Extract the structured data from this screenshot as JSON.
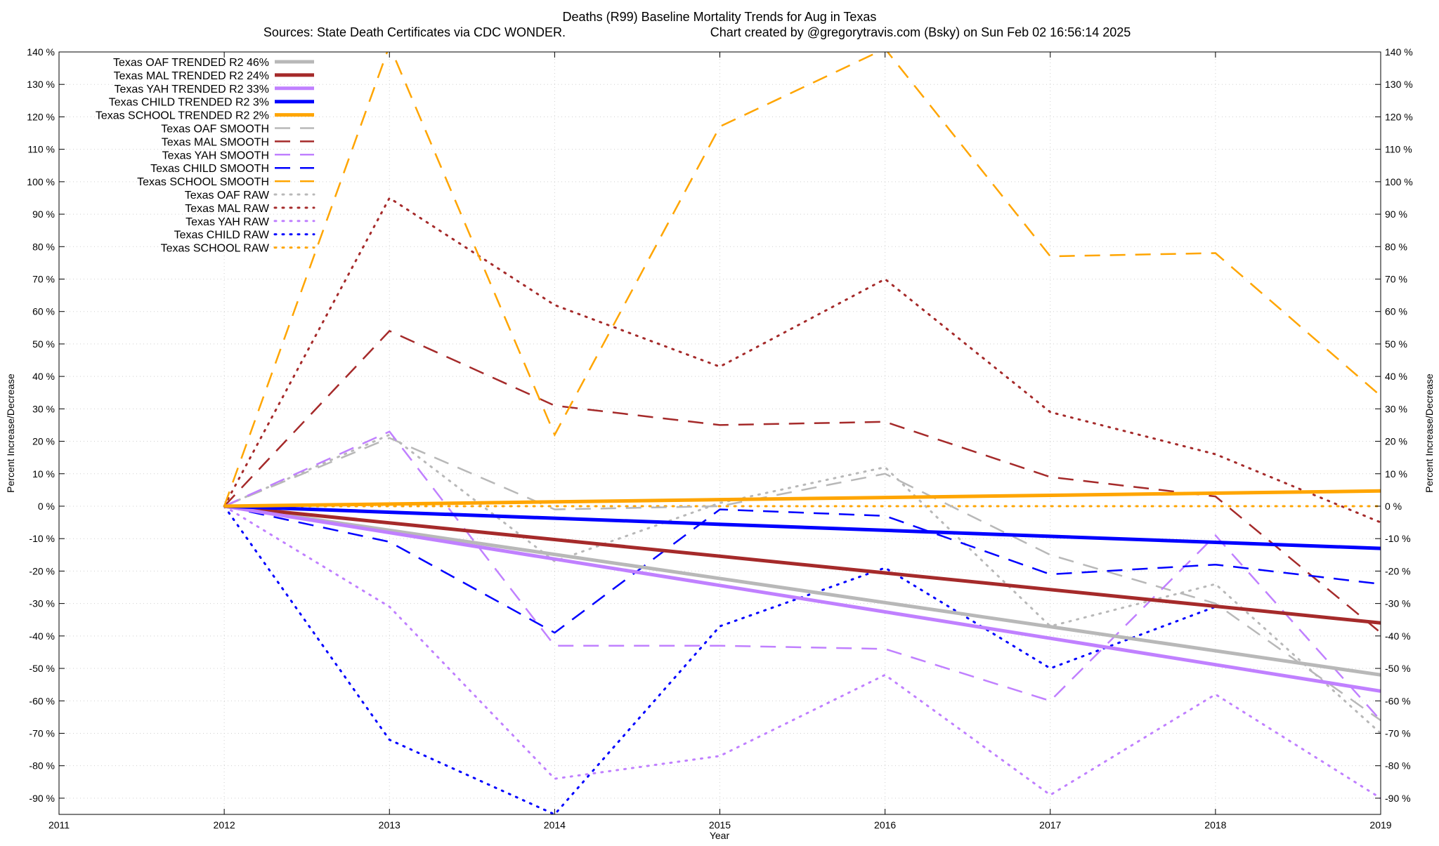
{
  "chart_data": {
    "type": "line",
    "title": "Deaths (R99)  Baseline Mortality Trends for Aug in Texas",
    "subtitle_left": "Sources: State Death Certificates via CDC WONDER.",
    "subtitle_right": "Chart created by @gregorytravis.com (Bsky) on Sun Feb 02 16:56:14 2025",
    "xlabel": "Year",
    "ylabel": "Percent Increase/Decrease",
    "y2label": "Percent Increase/Decrease",
    "xlim": [
      2011,
      2019
    ],
    "ylim": [
      -95,
      140
    ],
    "x_ticks": [
      "2011",
      "2012",
      "2013",
      "2014",
      "2015",
      "2016",
      "2017",
      "2018",
      "2019"
    ],
    "y_ticks": [
      140,
      130,
      120,
      110,
      100,
      90,
      80,
      70,
      60,
      50,
      40,
      30,
      20,
      10,
      0,
      -10,
      -20,
      -30,
      -40,
      -50,
      -60,
      -70,
      -80,
      -90
    ],
    "y_tick_labels": [
      "140 %",
      "130 %",
      "120 %",
      "110 %",
      "100 %",
      "90 %",
      "80 %",
      "70 %",
      "60 %",
      "50 %",
      "40 %",
      "30 %",
      "20 %",
      "10 %",
      "0 %",
      "-10 %",
      "-20 %",
      "-30 %",
      "-40 %",
      "-50 %",
      "-60 %",
      "-70 %",
      "-80 %",
      "-90 %"
    ],
    "grid": true,
    "legend_position": "top-left",
    "series": [
      {
        "name": "Texas OAF TRENDED R2  46%",
        "style": "solid",
        "color": "#b8b8b8",
        "x": [
          2012,
          2019
        ],
        "y": [
          0,
          -52
        ]
      },
      {
        "name": "Texas MAL TRENDED R2  24%",
        "style": "solid",
        "color": "#a52a2a",
        "x": [
          2012,
          2019
        ],
        "y": [
          0,
          -36
        ]
      },
      {
        "name": "Texas YAH TRENDED R2  33%",
        "style": "solid",
        "color": "#c080ff",
        "x": [
          2012,
          2019
        ],
        "y": [
          0,
          -57
        ]
      },
      {
        "name": "Texas CHILD TRENDED R2  3%",
        "style": "solid",
        "color": "#0000ff",
        "x": [
          2012,
          2019
        ],
        "y": [
          0,
          -13
        ]
      },
      {
        "name": "Texas SCHOOL TRENDED R2  2%",
        "style": "solid",
        "color": "#ffa500",
        "x": [
          2012,
          2019
        ],
        "y": [
          0,
          4.7
        ]
      },
      {
        "name": "Texas OAF SMOOTH",
        "style": "dash",
        "color": "#b8b8b8",
        "x": [
          2012,
          2013,
          2014,
          2015,
          2016,
          2017,
          2018,
          2019
        ],
        "y": [
          0,
          21,
          -1,
          0,
          10,
          -15,
          -30,
          -66
        ]
      },
      {
        "name": "Texas MAL SMOOTH",
        "style": "dash",
        "color": "#a52a2a",
        "x": [
          2012,
          2013,
          2014,
          2015,
          2016,
          2017,
          2018,
          2019
        ],
        "y": [
          0,
          54,
          31,
          25,
          26,
          9,
          3,
          -39
        ]
      },
      {
        "name": "Texas YAH SMOOTH",
        "style": "dash",
        "color": "#c080ff",
        "x": [
          2012,
          2013,
          2014,
          2015,
          2016,
          2017,
          2018,
          2019
        ],
        "y": [
          0,
          23,
          -43,
          -43,
          -44,
          -60,
          -9,
          -66
        ]
      },
      {
        "name": "Texas CHILD SMOOTH",
        "style": "dash",
        "color": "#0000ff",
        "x": [
          2012,
          2013,
          2014,
          2015,
          2016,
          2017,
          2018,
          2019
        ],
        "y": [
          0,
          -11,
          -39,
          -1,
          -3,
          -21,
          -18,
          -24
        ]
      },
      {
        "name": "Texas SCHOOL SMOOTH",
        "style": "dash",
        "color": "#ffa500",
        "x": [
          2012,
          2013,
          2014,
          2015,
          2016,
          2017,
          2018,
          2019
        ],
        "y": [
          0,
          142,
          22,
          117,
          141,
          77,
          78,
          34
        ]
      },
      {
        "name": "Texas OAF RAW",
        "style": "dot",
        "color": "#b8b8b8",
        "x": [
          2012,
          2013,
          2014,
          2015,
          2016,
          2017,
          2018,
          2019
        ],
        "y": [
          0,
          22,
          -17,
          1,
          12,
          -37,
          -24,
          -70
        ]
      },
      {
        "name": "Texas MAL RAW",
        "style": "dot",
        "color": "#a52a2a",
        "x": [
          2012,
          2013,
          2014,
          2015,
          2016,
          2017,
          2018,
          2019
        ],
        "y": [
          0,
          95,
          62,
          43,
          70,
          29,
          16,
          -5
        ]
      },
      {
        "name": "Texas YAH RAW",
        "style": "dot",
        "color": "#c080ff",
        "x": [
          2012,
          2013,
          2014,
          2015,
          2016,
          2017,
          2018,
          2019
        ],
        "y": [
          0,
          -31,
          -84,
          -77,
          -52,
          -89,
          -58,
          -90
        ]
      },
      {
        "name": "Texas CHILD RAW",
        "style": "dot",
        "color": "#0000ff",
        "x": [
          2012,
          2013,
          2014,
          2015,
          2016,
          2017,
          2018,
          2019
        ],
        "y": [
          0,
          -72,
          -95,
          -37,
          -19,
          -50,
          -31,
          -36
        ]
      },
      {
        "name": "Texas SCHOOL RAW",
        "style": "dot",
        "color": "#ffa500",
        "x": [
          2012,
          2013,
          2014,
          2015,
          2016,
          2017,
          2018,
          2019
        ],
        "y": [
          0,
          0,
          0,
          0,
          0,
          0,
          0,
          0
        ]
      }
    ]
  }
}
